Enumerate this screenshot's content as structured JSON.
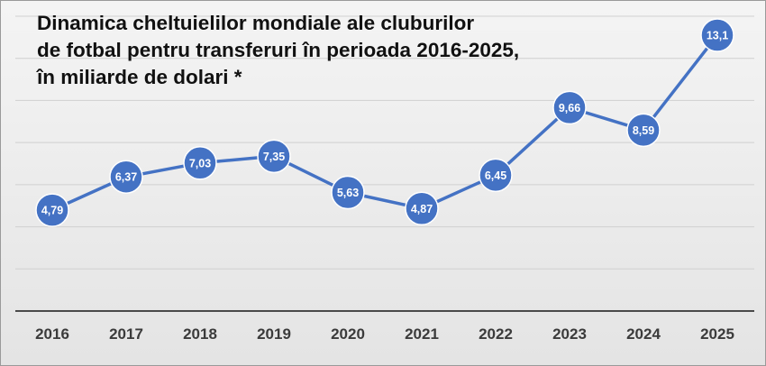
{
  "title_lines": [
    "Dinamica cheltuielilor mondiale ale cluburilor",
    "de fotbal pentru transferuri în perioada 2016-2025,",
    "în miliarde de dolari *"
  ],
  "colors": {
    "line": "#4472C4",
    "marker": "#4472C4",
    "marker_border": "#ffffff",
    "grid": "#d0d0d0",
    "axis": "#4a4a4a",
    "background": "#ececec"
  },
  "chart_data": {
    "type": "line",
    "title": "Dinamica cheltuielilor mondiale ale cluburilor de fotbal pentru transferuri în perioada 2016-2025, în miliarde de dolari *",
    "xlabel": "",
    "ylabel": "",
    "categories": [
      "2016",
      "2017",
      "2018",
      "2019",
      "2020",
      "2021",
      "2022",
      "2023",
      "2024",
      "2025"
    ],
    "series": [
      {
        "values": [
          4.79,
          6.37,
          7.03,
          7.35,
          5.63,
          4.87,
          6.45,
          9.66,
          8.59,
          13.1
        ],
        "labels": [
          "4,79",
          "6,37",
          "7,03",
          "7,35",
          "5,63",
          "4,87",
          "6,45",
          "9,66",
          "8,59",
          "13,1"
        ]
      }
    ],
    "ylim": [
      0,
      14
    ],
    "grid": true,
    "legend": "none"
  }
}
